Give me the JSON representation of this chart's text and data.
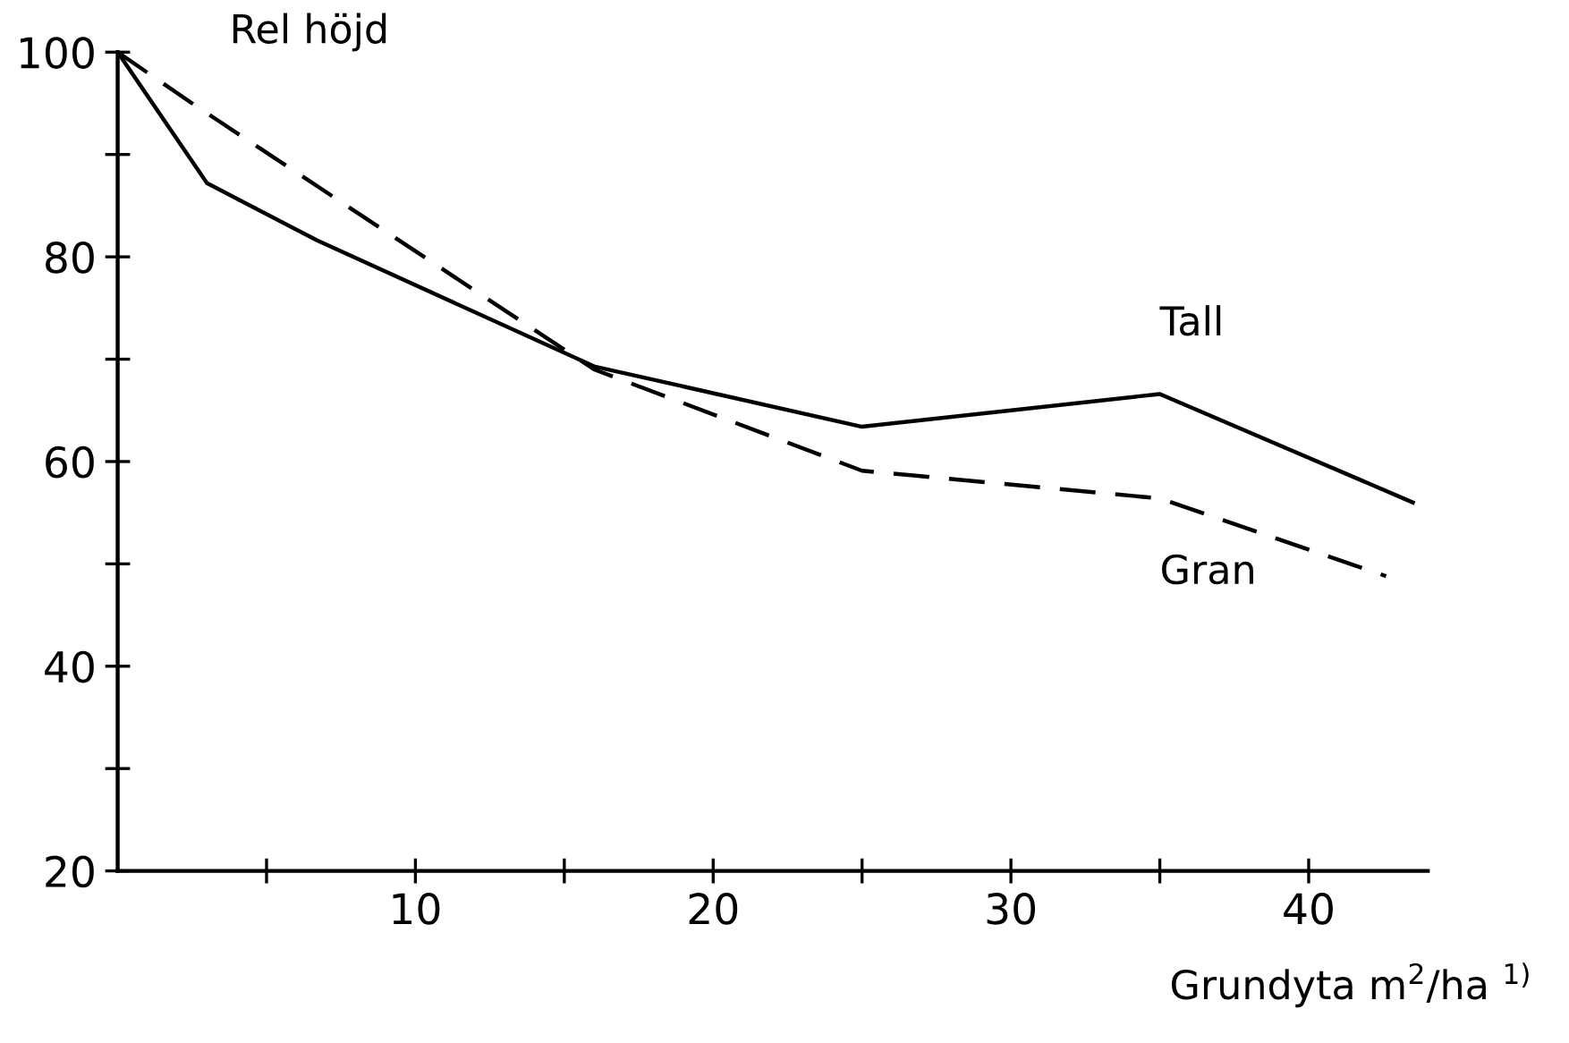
{
  "chart_data": {
    "type": "line",
    "ylabel": "Rel höjd",
    "xlabel": "Grundyta m$^{2}$/ha $^{1)}$",
    "xlim": [
      0,
      44
    ],
    "ylim": [
      20,
      100
    ],
    "xticks": [
      {
        "value": 5,
        "label": null
      },
      10,
      {
        "value": 15,
        "label": null
      },
      20,
      {
        "value": 25,
        "label": null
      },
      30,
      {
        "value": 35,
        "label": null
      },
      40
    ],
    "yticks": [
      20,
      {
        "value": 30,
        "label": null
      },
      40,
      {
        "value": 50,
        "label": null
      },
      60,
      {
        "value": 70,
        "label": null
      },
      80,
      {
        "value": 90,
        "label": null
      },
      100
    ],
    "grid": false,
    "legend": false,
    "marker": "none",
    "series": [
      {
        "name": "Tall",
        "color": "#000000",
        "line_style": "solid",
        "x": [
          0,
          3,
          6.7,
          16,
          25,
          35,
          43.5
        ],
        "values": [
          100,
          87.2,
          81.6,
          69.3,
          63.4,
          66.6,
          56
        ]
      },
      {
        "name": "Gran",
        "color": "#000000",
        "line_style": "dashed",
        "x": [
          0,
          2.6,
          16,
          25,
          35,
          42.6
        ],
        "values": [
          100,
          94.8,
          69,
          59.1,
          56.4,
          48.8
        ]
      }
    ]
  }
}
